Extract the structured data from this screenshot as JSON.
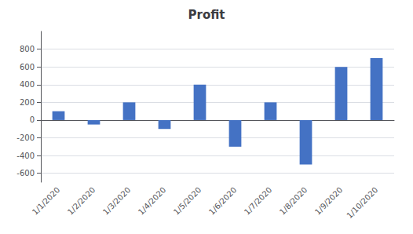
{
  "chart_data": {
    "type": "bar",
    "title": "Profit",
    "categories": [
      "1/1/2020",
      "1/2/2020",
      "1/3/2020",
      "1/4/2020",
      "1/5/2020",
      "1/6/2020",
      "1/7/2020",
      "1/8/2020",
      "1/9/2020",
      "1/10/2020"
    ],
    "values": [
      100,
      -50,
      200,
      -100,
      400,
      -300,
      200,
      -500,
      600,
      700
    ],
    "color": "#4472C4",
    "ylim": [
      -700,
      1000
    ],
    "yticks": [
      -600,
      -400,
      -200,
      0,
      200,
      400,
      600,
      800
    ],
    "grid": true
  }
}
